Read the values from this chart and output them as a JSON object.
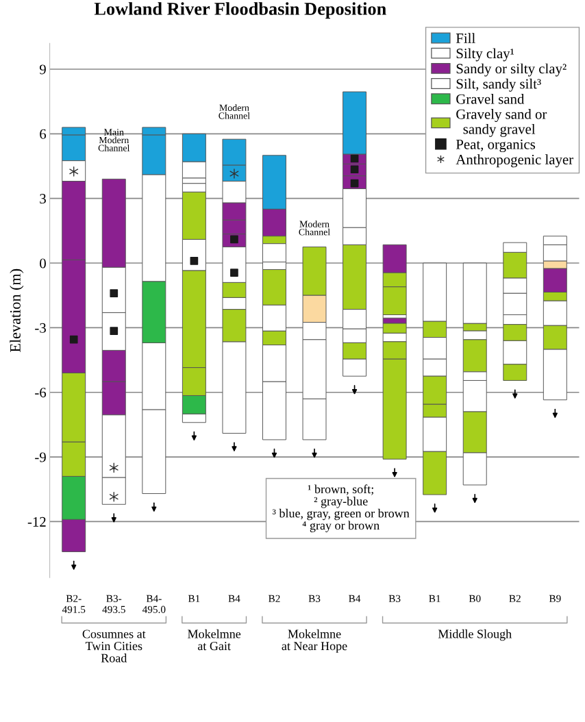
{
  "chart_data": {
    "type": "bar",
    "title": "Lowland River Floodbasin Deposition",
    "ylabel": "Elevation (m)",
    "categories": [
      "B2-\n491.5",
      "B3-\n493.5",
      "B4-\n495.0",
      "B1",
      "B4",
      "B2",
      "B3",
      "B4",
      "B3",
      "B1",
      "B0",
      "B2",
      "B9"
    ],
    "ylim": [
      -14.6,
      10.2
    ],
    "yticks": [
      9,
      6,
      3,
      0,
      -3,
      -6,
      -9,
      -12
    ],
    "grid": "y",
    "legend": "top right",
    "series": [
      {
        "name": "Fill",
        "color": "#1ba1d9",
        "values": [
          1.2,
          null,
          1.85,
          1.3,
          0.75,
          2.5,
          null,
          2.9,
          null,
          null,
          null,
          null,
          null
        ],
        "base": [
          4.75,
          null,
          4.1,
          4.7,
          3.8,
          2.5,
          null,
          5.05,
          null,
          null,
          null,
          null,
          null
        ]
      },
      {
        "name": "Silty clay¹",
        "color": "#ffffff",
        "values": [
          0.95,
          1.25,
          3.9,
          0.4,
          4.25,
          2.7,
          1.9,
          0.8,
          0.4,
          1.6,
          1.5,
          1.1,
          2.35
        ],
        "base": [
          3.8,
          -11.2,
          -10.7,
          -7.4,
          -7.9,
          -8.2,
          -8.2,
          -5.25,
          -3.65,
          -8.75,
          -10.3,
          -4.7,
          -6.35
        ]
      },
      {
        "name": "Sandy or silty clay²",
        "color": "#8b2090",
        "values": [
          1.5,
          1.55,
          null,
          null,
          0.6,
          1.25,
          null,
          0.6,
          0.25,
          null,
          null,
          null,
          1.1
        ],
        "base": [
          -13.4,
          -7.05,
          null,
          null,
          0.75,
          1.25,
          null,
          3.45,
          -2.8,
          null,
          null,
          null,
          -1.35
        ]
      },
      {
        "name": "Silt, sandy silt³",
        "color": "#ffffff",
        "values": [
          null,
          2.9,
          3.1,
          1.45,
          0.55,
          1.7,
          2.75,
          0.65,
          0.15,
          0.8,
          1.45,
          0.45,
          1.15
        ],
        "base": [
          null,
          -9.95,
          -6.8,
          -0.35,
          -2.15,
          -5.5,
          -6.3,
          -3.7,
          -2.55,
          -5.25,
          -6.9,
          -2.85,
          -2.9
        ]
      },
      {
        "name": "Gravel sand",
        "color": "#2db84a",
        "values": [
          2.0,
          null,
          2.85,
          0.85,
          null,
          null,
          null,
          null,
          null,
          null,
          null,
          null,
          null
        ],
        "base": [
          -11.9,
          null,
          -3.7,
          -7.0,
          null,
          null,
          null,
          null,
          null,
          null,
          null,
          null,
          null
        ]
      },
      {
        "name": "Gravely sand or\n  sandy gravel",
        "color": "#a6cf1c",
        "values": [
          1.6,
          null,
          null,
          1.3,
          1.5,
          0.65,
          2.25,
          0.75,
          4.65,
          2.0,
          1.9,
          0.75,
          1.1
        ],
        "base": [
          -9.9,
          null,
          null,
          -6.15,
          -3.65,
          -3.8,
          -1.5,
          -4.45,
          -9.1,
          -10.75,
          -8.8,
          -5.45,
          -4.0
        ]
      },
      {
        "color": "#1ba1d9",
        "values": [
          0.35,
          null,
          0.35,
          null,
          1.2,
          null,
          null,
          null,
          null,
          null,
          null,
          null,
          null
        ],
        "base": [
          5.95,
          null,
          5.95,
          null,
          4.55,
          null,
          null,
          null,
          null,
          null,
          null,
          null,
          null
        ]
      },
      {
        "color": "#8b2090",
        "values": [
          5.25,
          1.45,
          null,
          null,
          0.65,
          null,
          null,
          0.55,
          1.3,
          null,
          null,
          null,
          null
        ],
        "base": [
          -5.1,
          -5.5,
          null,
          null,
          1.35,
          null,
          null,
          4.05,
          -0.45,
          null,
          null,
          null,
          null
        ]
      },
      {
        "color": "#8b2090",
        "values": [
          3.65,
          4.1,
          null,
          null,
          0.8,
          null,
          null,
          0.45,
          null,
          null,
          null,
          null,
          null
        ],
        "base": [
          0.15,
          -0.2,
          null,
          null,
          2.0,
          null,
          null,
          4.6,
          null,
          null,
          null,
          null,
          null
        ]
      },
      {
        "color": "#a6cf1c",
        "values": [
          3.2,
          null,
          null,
          4.5,
          0.7,
          1.65,
          null,
          3.0,
          0.8,
          0.6,
          1.5,
          0.75,
          0.4
        ],
        "base": [
          -8.3,
          null,
          null,
          -4.85,
          -1.6,
          -1.95,
          null,
          -2.15,
          -4.45,
          -7.15,
          -5.05,
          -3.6,
          -1.75
        ]
      },
      {
        "color": "#a6cf1c",
        "values": [
          null,
          null,
          null,
          2.2,
          null,
          0.35,
          null,
          null,
          0.45,
          1.3,
          0.35,
          1.2,
          null
        ],
        "base": [
          null,
          null,
          null,
          1.1,
          null,
          0.9,
          null,
          null,
          -3.25,
          -6.55,
          -3.15,
          -0.7,
          null
        ]
      },
      {
        "color": "#a6cf1c",
        "values": [
          null,
          null,
          null,
          null,
          null,
          null,
          null,
          null,
          1.3,
          0.75,
          null,
          null,
          null
        ],
        "base": [
          null,
          null,
          null,
          null,
          null,
          null,
          null,
          null,
          -2.4,
          -3.45,
          null,
          null,
          null
        ]
      },
      {
        "color": "#a6cf1c",
        "values": [
          null,
          null,
          null,
          null,
          null,
          null,
          null,
          null,
          0.65,
          null,
          null,
          null,
          null
        ],
        "base": [
          null,
          null,
          null,
          null,
          null,
          null,
          null,
          null,
          -1.1,
          null,
          null,
          null,
          null
        ]
      },
      {
        "color": "#fbd9a0",
        "values": [
          null,
          null,
          null,
          null,
          null,
          null,
          1.25,
          null,
          null,
          null,
          null,
          null,
          0.35
        ],
        "base": [
          null,
          null,
          null,
          null,
          null,
          null,
          -2.75,
          null,
          null,
          null,
          null,
          null,
          -0.25
        ]
      },
      {
        "color": "#ffffff",
        "values": [
          null,
          1.75,
          4.95,
          0.4,
          1.65,
          1.2,
          0.8,
          0.9,
          null,
          1.0,
          0.4,
          1.0,
          0.75
        ],
        "base": [
          null,
          -4.05,
          -0.85,
          3.3,
          -0.9,
          -3.15,
          -3.55,
          -3.05,
          null,
          -4.45,
          -5.45,
          -2.4,
          0.1
        ]
      },
      {
        "color": "#ffffff",
        "values": [
          null,
          2.1,
          null,
          0.25,
          1.0,
          0.35,
          null,
          0.8,
          null,
          2.7,
          0.4,
          0.7,
          0.4
        ],
        "base": [
          null,
          -2.3,
          null,
          3.7,
          2.8,
          -0.3,
          null,
          0.85,
          null,
          -2.7,
          -3.55,
          -1.4,
          0.85
        ]
      },
      {
        "color": "#ffffff",
        "values": [
          null,
          null,
          null,
          0.75,
          null,
          0.85,
          null,
          1.8,
          null,
          null,
          2.8,
          0.45,
          null
        ],
        "base": [
          null,
          null,
          null,
          3.95,
          null,
          0.05,
          null,
          1.65,
          null,
          null,
          -2.8,
          0.5,
          null
        ]
      },
      {
        "type": "scatter",
        "name": "Peat, organics",
        "color": "#1a1a1a",
        "marker": "square",
        "values": [
          -3.55,
          -1.4,
          null,
          0.1,
          1.1,
          null,
          null,
          4.85,
          null,
          null,
          null,
          null,
          null
        ]
      },
      {
        "type": "scatter",
        "color": "#1a1a1a",
        "marker": "square",
        "values": [
          null,
          -3.15,
          null,
          null,
          -0.45,
          null,
          null,
          4.35,
          null,
          null,
          null,
          null,
          null
        ]
      },
      {
        "type": "scatter",
        "color": "#1a1a1a",
        "marker": "square",
        "values": [
          null,
          null,
          null,
          null,
          null,
          null,
          null,
          3.7,
          null,
          null,
          null,
          null,
          null
        ]
      },
      {
        "type": "scatter",
        "name": "Anthropogenic layer",
        "color": "#333333",
        "marker": "cross",
        "values": [
          4.25,
          -9.5,
          null,
          null,
          4.15,
          null,
          null,
          null,
          null,
          null,
          null,
          null,
          null
        ]
      },
      {
        "type": "scatter",
        "color": "#333333",
        "marker": "cross",
        "values": [
          null,
          -10.85,
          null,
          null,
          null,
          null,
          null,
          null,
          null,
          null,
          null,
          null,
          null
        ]
      }
    ],
    "annotations": [
      {
        "text": "Main\nModern\nChannel"
      },
      {
        "text": "Modern\nChannel"
      },
      {
        "text": "Modern\nChannel"
      },
      {
        "text": "¹ brown, soft;\n² gray-blue\n³ blue, gray, green or brown\n⁴ gray or brown"
      },
      {
        "text": "Cosumnes at\nTwin Cities\nRoad"
      },
      {
        "text": "Mokelmne\nat Gait"
      },
      {
        "text": "Mokelmne\nat Near Hope"
      },
      {
        "text": "Middle Slough"
      }
    ]
  }
}
